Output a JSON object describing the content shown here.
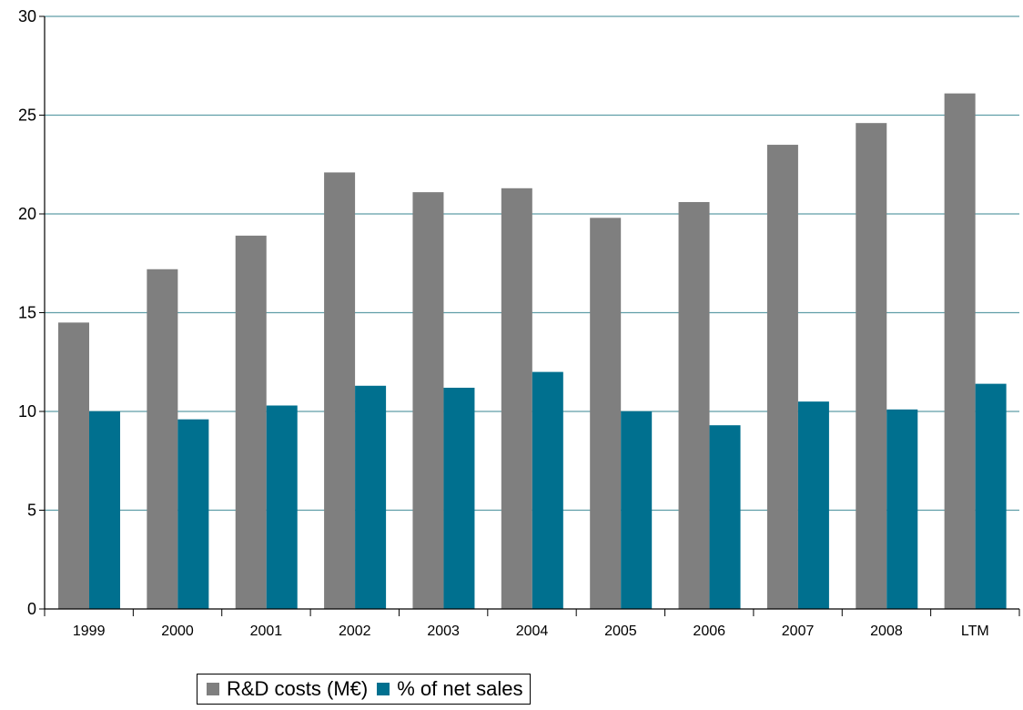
{
  "chart_data": {
    "type": "bar",
    "categories": [
      "1999",
      "2000",
      "2001",
      "2002",
      "2003",
      "2004",
      "2005",
      "2006",
      "2007",
      "2008",
      "LTM"
    ],
    "series": [
      {
        "name": "R&D costs (M€)",
        "color": "#7f7f7f",
        "values": [
          14.5,
          17.2,
          18.9,
          22.1,
          21.1,
          21.3,
          19.8,
          20.6,
          23.5,
          24.6,
          26.1
        ]
      },
      {
        "name": "% of net sales",
        "color": "#00708f",
        "values": [
          10.0,
          9.6,
          10.3,
          11.3,
          11.2,
          12.0,
          10.0,
          9.3,
          10.5,
          10.1,
          11.4
        ]
      }
    ],
    "ylim": [
      0,
      30
    ],
    "yticks": [
      "0",
      "5",
      "10",
      "15",
      "20",
      "25",
      "30"
    ],
    "title": "",
    "xlabel": "",
    "ylabel": "",
    "grid": true,
    "gridColor": "#5f9ea8",
    "legend": "bottom"
  }
}
